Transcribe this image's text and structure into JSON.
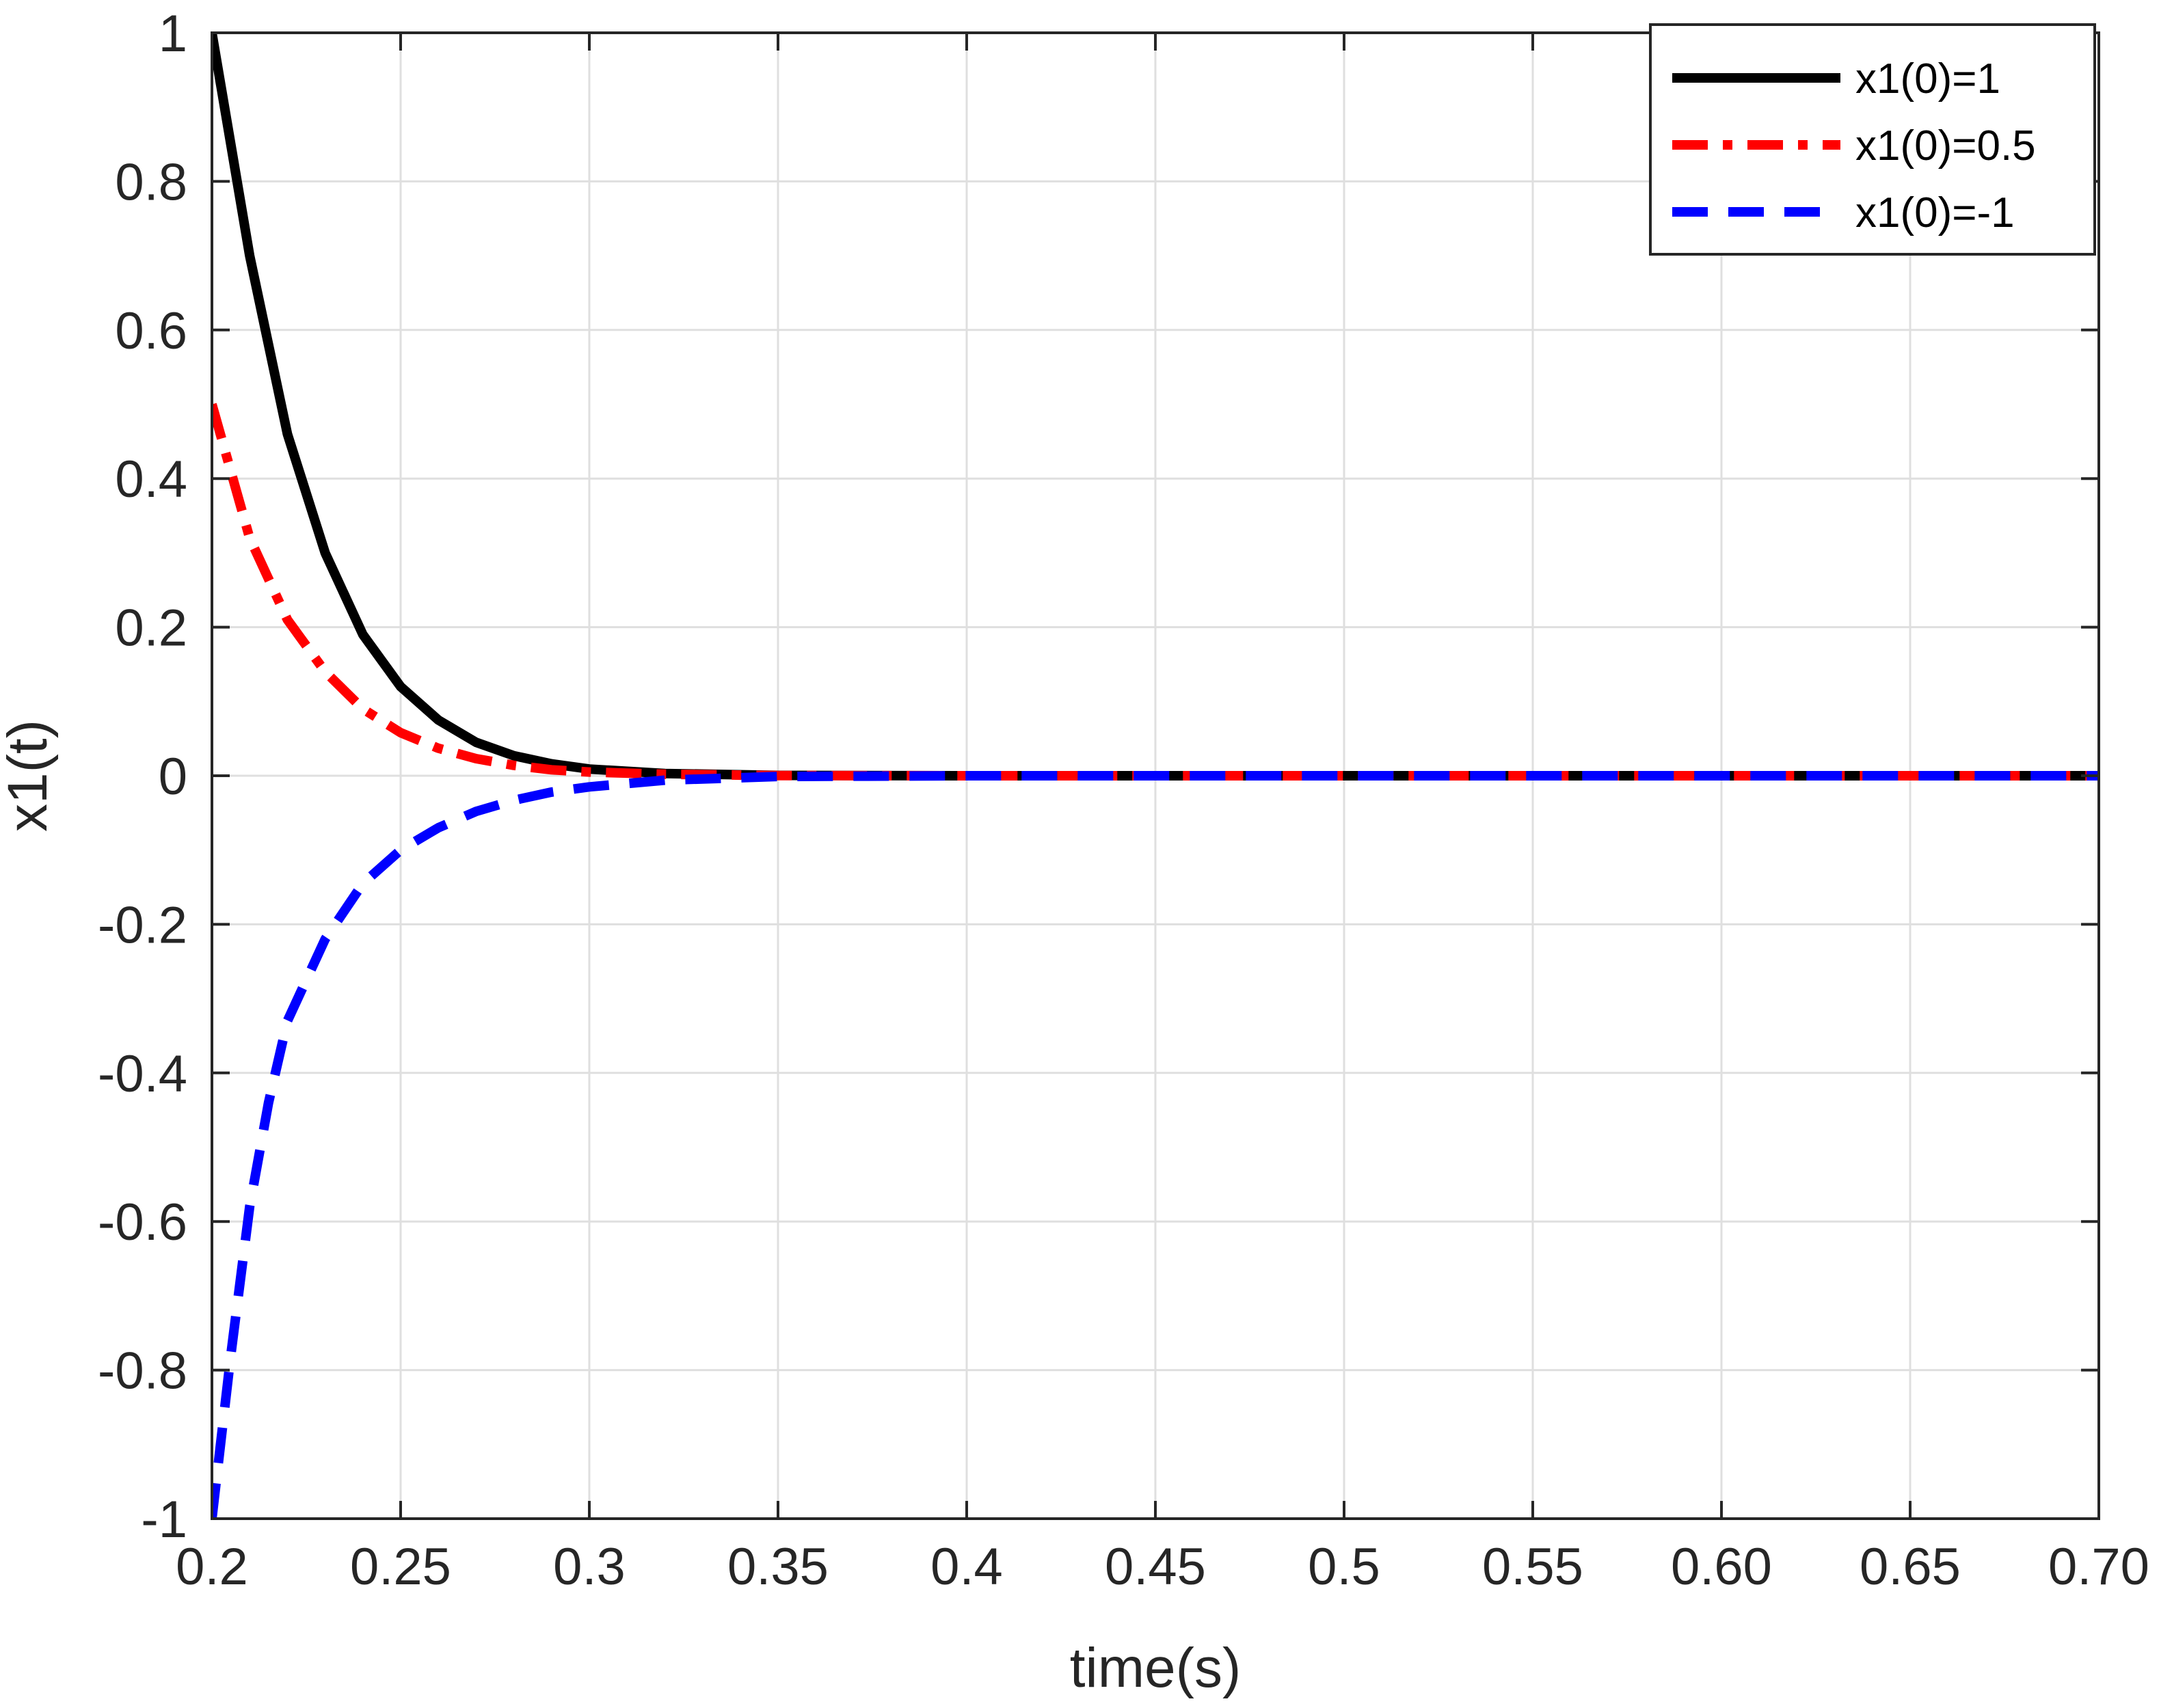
{
  "chart_data": {
    "type": "line",
    "title": "",
    "xlabel": "time(s)",
    "ylabel": "x1(t)",
    "xlim": [
      0.2,
      0.7
    ],
    "ylim": [
      -1,
      1
    ],
    "grid": true,
    "legend_position": "top-right",
    "xticks": [
      0.2,
      0.25,
      0.3,
      0.35,
      0.4,
      0.45,
      0.5,
      0.55,
      0.6,
      0.65,
      0.7
    ],
    "xtick_labels": [
      "0.2",
      "0.25",
      "0.3",
      "0.35",
      "0.4",
      "0.45",
      "0.5",
      "0.55",
      "0.60",
      "0.65",
      "0.70"
    ],
    "yticks": [
      -1,
      -0.8,
      -0.6,
      -0.4,
      -0.2,
      0,
      0.2,
      0.4,
      0.6,
      0.8,
      1
    ],
    "ytick_labels": [
      "-1",
      "-0.8",
      "-0.6",
      "-0.4",
      "-0.2",
      "0",
      "0.2",
      "0.4",
      "0.6",
      "0.8",
      "1"
    ],
    "series": [
      {
        "name": "x1(0)=1",
        "color": "#000000",
        "line_style": "solid",
        "x": [
          0.2,
          0.21,
          0.22,
          0.23,
          0.24,
          0.25,
          0.26,
          0.27,
          0.28,
          0.29,
          0.3,
          0.32,
          0.35,
          0.4,
          0.5,
          0.6,
          0.7
        ],
        "y": [
          1.0,
          0.7,
          0.46,
          0.3,
          0.19,
          0.12,
          0.075,
          0.045,
          0.027,
          0.016,
          0.009,
          0.003,
          0.0005,
          0.0,
          0.0,
          0.0,
          0.0
        ]
      },
      {
        "name": "x1(0)=0.5",
        "color": "#ff0000",
        "line_style": "dash-dot",
        "x": [
          0.2,
          0.21,
          0.22,
          0.23,
          0.24,
          0.25,
          0.26,
          0.27,
          0.28,
          0.29,
          0.3,
          0.32,
          0.35,
          0.4,
          0.5,
          0.6,
          0.7
        ],
        "y": [
          0.5,
          0.32,
          0.21,
          0.14,
          0.09,
          0.058,
          0.037,
          0.023,
          0.014,
          0.008,
          0.005,
          0.002,
          0.0003,
          0.0,
          0.0,
          0.0,
          0.0
        ]
      },
      {
        "name": "x1(0)=-1",
        "color": "#0000ff",
        "line_style": "dashed",
        "x": [
          0.2,
          0.205,
          0.21,
          0.215,
          0.22,
          0.23,
          0.24,
          0.25,
          0.26,
          0.27,
          0.28,
          0.29,
          0.3,
          0.32,
          0.35,
          0.4,
          0.5,
          0.6,
          0.7
        ],
        "y": [
          -1.0,
          -0.78,
          -0.58,
          -0.44,
          -0.33,
          -0.22,
          -0.145,
          -0.1,
          -0.07,
          -0.048,
          -0.033,
          -0.022,
          -0.015,
          -0.006,
          -0.001,
          0.0,
          0.0,
          0.0,
          0.0
        ]
      }
    ]
  }
}
